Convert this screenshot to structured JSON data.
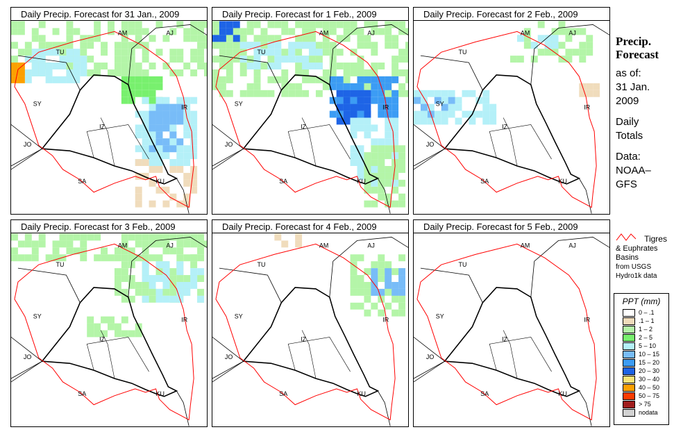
{
  "panels": [
    {
      "title": "Daily Precip. Forecast for  31 Jan., 2009"
    },
    {
      "title": "Daily Precip. Forecast for  1 Feb., 2009"
    },
    {
      "title": "Daily Precip. Forecast for  2 Feb., 2009"
    },
    {
      "title": "Daily Precip. Forecast for  3 Feb., 2009"
    },
    {
      "title": "Daily Precip. Forecast for  4 Feb., 2009"
    },
    {
      "title": "Daily Precip. Forecast for  5 Feb., 2009"
    }
  ],
  "country_labels": [
    "AM",
    "AJ",
    "TU",
    "SY",
    "IR",
    "IZ",
    "JO",
    "SA",
    "KU"
  ],
  "side": {
    "title1": "Precip.",
    "title2": "Forecast",
    "asof": "as of:",
    "date1": "31 Jan.",
    "date2": "2009",
    "daily1": "Daily",
    "daily2": "Totals",
    "data1": "Data:",
    "data2": "NOAA–",
    "data3": "GFS"
  },
  "basin_legend": {
    "line1": "Tigres",
    "line2": "& Euphrates",
    "line3": "Basins",
    "line4": "from USGS",
    "line5": "Hydro1k data"
  },
  "legend": {
    "title": "PPT (mm)",
    "items": [
      {
        "label": "0 – .1",
        "color": "#ffffff"
      },
      {
        "label": ".1 – 1",
        "color": "#f0dcbc"
      },
      {
        "label": "1 – 2",
        "color": "#b4f5a8"
      },
      {
        "label": "2 – 5",
        "color": "#78f06e"
      },
      {
        "label": "5 – 10",
        "color": "#b4f0f8"
      },
      {
        "label": "10 – 15",
        "color": "#78bcf8"
      },
      {
        "label": "15 – 20",
        "color": "#3c9cf4"
      },
      {
        "label": "20 – 30",
        "color": "#1e64e6"
      },
      {
        "label": "30 – 40",
        "color": "#fce478"
      },
      {
        "label": "40 – 50",
        "color": "#fca000"
      },
      {
        "label": "50 – 75",
        "color": "#fc3c00"
      },
      {
        "label": "> 75",
        "color": "#a01e1e"
      },
      {
        "label": "nodata",
        "color": "#d2d2d2"
      }
    ]
  }
}
